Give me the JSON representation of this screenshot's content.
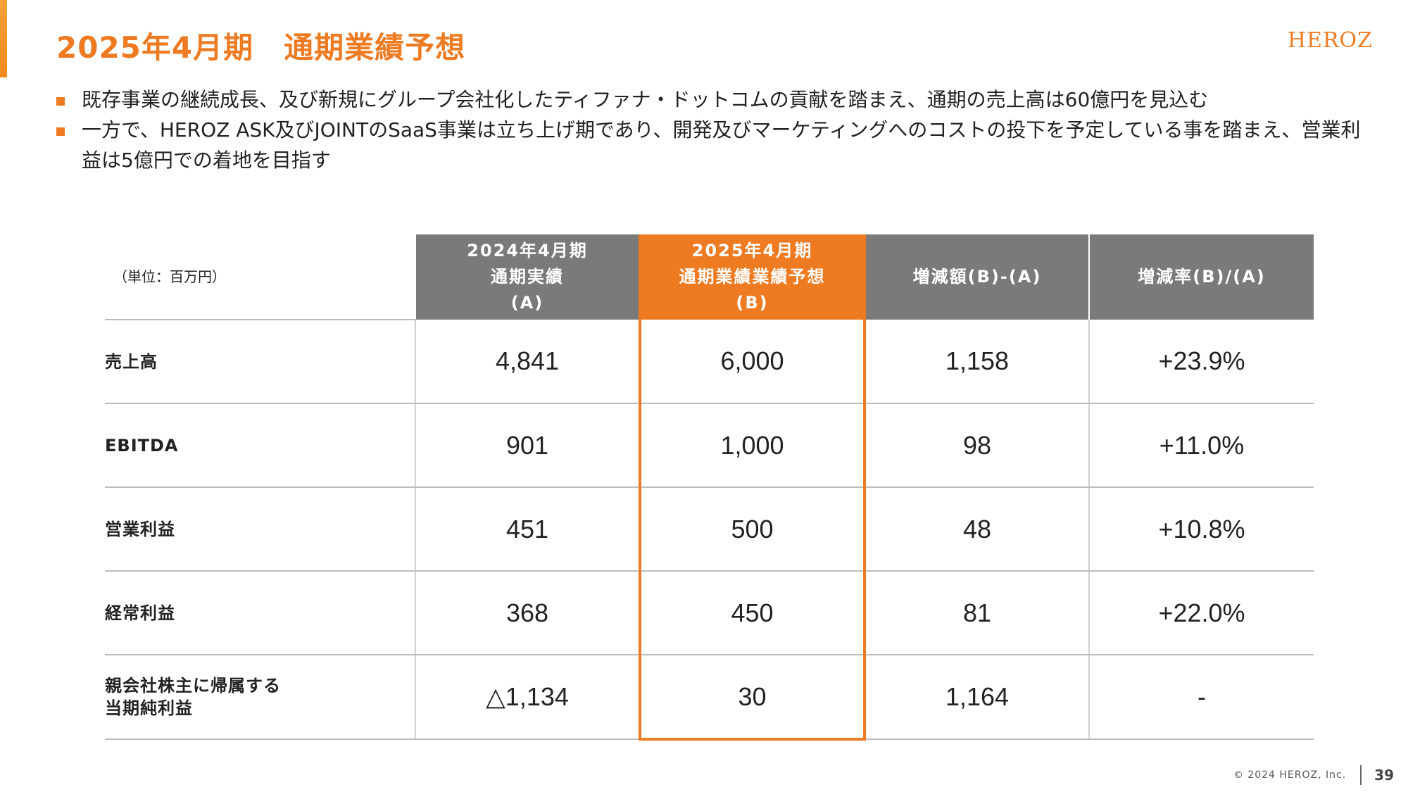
{
  "slide": {
    "title": "2025年4月期　通期業績予想",
    "logo": "HEROZ",
    "bullets": [
      "既存事業の継続成長、及び新規にグループ会社化したティファナ・ドットコムの貢献を踏まえ、通期の売上高は60億円を見込む",
      "一方で、HEROZ ASK及びJOINTのSaaS事業は立ち上げ期であり、開発及びマーケティングへのコストの投下を予定している事を踏まえ、営業利益は5億円での着地を目指す"
    ],
    "accent_color": "#ee7b22"
  },
  "table": {
    "unit": "（単位：百万円）",
    "headers": [
      [
        "2024年4月期",
        "通期実績",
        "(A)"
      ],
      [
        "2025年4月期",
        "通期業績業績予想",
        "(B)"
      ],
      [
        "増減額(B)-(A)"
      ],
      [
        "増減率(B)/(A)"
      ]
    ],
    "rows": [
      {
        "label": [
          "売上高"
        ],
        "values": [
          "4,841",
          "6,000",
          "1,158",
          "+23.9%"
        ]
      },
      {
        "label": [
          "EBITDA"
        ],
        "values": [
          "901",
          "1,000",
          "98",
          "+11.0%"
        ]
      },
      {
        "label": [
          "営業利益"
        ],
        "values": [
          "451",
          "500",
          "48",
          "+10.8%"
        ]
      },
      {
        "label": [
          "経常利益"
        ],
        "values": [
          "368",
          "450",
          "81",
          "+22.0%"
        ]
      },
      {
        "label": [
          "親会社株主に帰属する",
          "当期純利益"
        ],
        "values": [
          "△1,134",
          "30",
          "1,164",
          "-"
        ]
      }
    ]
  },
  "footer": {
    "copyright": "© 2024 HEROZ, Inc.",
    "page_number": "39"
  }
}
